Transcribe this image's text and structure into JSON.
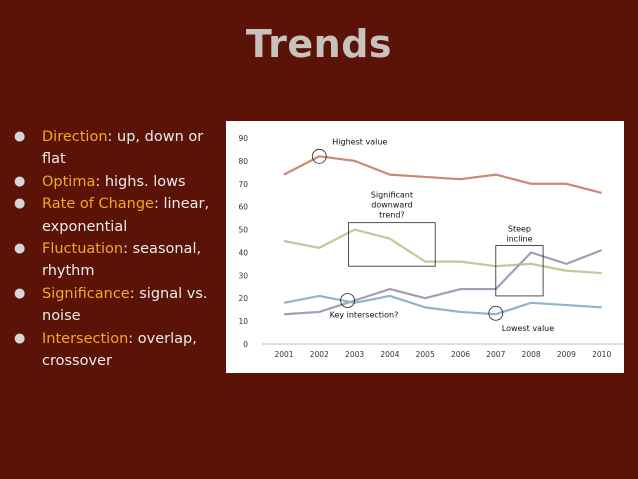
{
  "slide": {
    "title": "Trends",
    "bullets": [
      {
        "term": "Direction",
        "sep": ": ",
        "text": "up, down or flat"
      },
      {
        "term": "Optima",
        "sep": ": ",
        "text": "highs. lows"
      },
      {
        "term": "Rate of Change",
        "sep": ": ",
        "text": "linear, exponential"
      },
      {
        "term": "Fluctuation",
        "sep": ": ",
        "text": "seasonal, rhythm"
      },
      {
        "term": "Significance",
        "sep": ": ",
        "text": "signal vs. noise"
      },
      {
        "term": "Intersection",
        "sep": ": ",
        "text": "overlap, crossover"
      }
    ]
  },
  "chart_data": {
    "type": "line",
    "title": "",
    "xlabel": "",
    "ylabel": "",
    "x": [
      "2001",
      "2002",
      "2003",
      "2004",
      "2005",
      "2006",
      "2007",
      "2008",
      "2009",
      "2010"
    ],
    "yticks": [
      0,
      10,
      20,
      30,
      40,
      50,
      60,
      70,
      80,
      90
    ],
    "ylim": [
      0,
      90
    ],
    "grid": false,
    "legend": "none",
    "series": [
      {
        "color": "#c98a75",
        "values": [
          74,
          82,
          80,
          74,
          73,
          72,
          74,
          70,
          70,
          66
        ]
      },
      {
        "color": "#bccb9a",
        "values": [
          45,
          42,
          50,
          46,
          36,
          36,
          34,
          35,
          32,
          31
        ]
      },
      {
        "color": "#a89bb5",
        "values": [
          13,
          14,
          19,
          24,
          20,
          24,
          24,
          40,
          35,
          41
        ]
      },
      {
        "color": "#8eb5c9",
        "values": [
          18,
          21,
          18,
          21,
          16,
          14,
          13,
          18,
          17,
          16
        ]
      }
    ],
    "annotations": [
      {
        "text": "Highest value",
        "kind": "circle",
        "x": "2002",
        "y": 82
      },
      {
        "text": "Significant downward trend?",
        "lines": [
          "Significant",
          "downward",
          "trend?"
        ],
        "kind": "box",
        "x_from": "2003",
        "x_to": "2005",
        "y_from": 34,
        "y_to": 53
      },
      {
        "text": "Steep incline",
        "lines": [
          "Steep",
          "incline"
        ],
        "kind": "box",
        "x_from": "2007",
        "x_to": "2008",
        "y_from": 21,
        "y_to": 43
      },
      {
        "text": "Key intersection?",
        "kind": "circle",
        "x": "2003",
        "y": 19
      },
      {
        "text": "Lowest value",
        "kind": "circle",
        "x": "2007",
        "y": 13
      }
    ]
  }
}
